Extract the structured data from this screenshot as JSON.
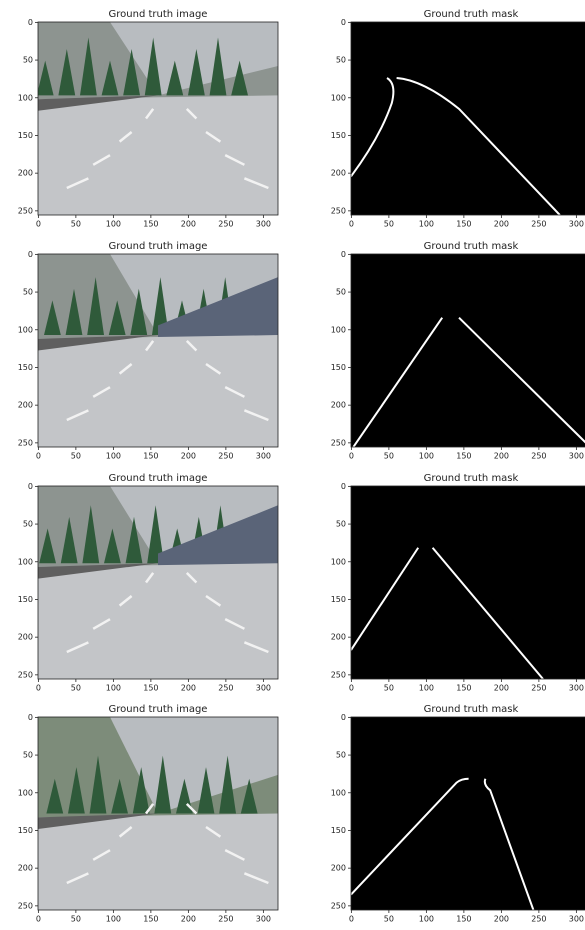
{
  "chart_data": [
    {
      "type": "image",
      "title": "Ground truth image",
      "xlim": [
        -0.5,
        319.5
      ],
      "ylim": [
        255.5,
        -0.5
      ],
      "xticks": [
        0,
        50,
        100,
        150,
        200,
        250,
        300
      ],
      "yticks": [
        0,
        50,
        100,
        150,
        200,
        250
      ]
    },
    {
      "type": "mask",
      "title": "Ground truth mask",
      "xlim": [
        -0.5,
        319.5
      ],
      "ylim": [
        255.5,
        -0.5
      ],
      "xticks": [
        0,
        50,
        100,
        150,
        200,
        250,
        300
      ],
      "yticks": [
        0,
        50,
        100,
        150,
        200,
        250
      ]
    },
    {
      "type": "image",
      "title": "Ground truth image",
      "xlim": [
        -0.5,
        319.5
      ],
      "ylim": [
        255.5,
        -0.5
      ],
      "xticks": [
        0,
        50,
        100,
        150,
        200,
        250,
        300
      ],
      "yticks": [
        0,
        50,
        100,
        150,
        200,
        250
      ]
    },
    {
      "type": "mask",
      "title": "Ground truth mask",
      "xlim": [
        -0.5,
        319.5
      ],
      "ylim": [
        255.5,
        -0.5
      ],
      "xticks": [
        0,
        50,
        100,
        150,
        200,
        250,
        300
      ],
      "yticks": [
        0,
        50,
        100,
        150,
        200,
        250
      ]
    },
    {
      "type": "image",
      "title": "Ground truth image",
      "xlim": [
        -0.5,
        319.5
      ],
      "ylim": [
        255.5,
        -0.5
      ],
      "xticks": [
        0,
        50,
        100,
        150,
        200,
        250,
        300
      ],
      "yticks": [
        0,
        50,
        100,
        150,
        200,
        250
      ]
    },
    {
      "type": "mask",
      "title": "Ground truth mask",
      "xlim": [
        -0.5,
        319.5
      ],
      "ylim": [
        255.5,
        -0.5
      ],
      "xticks": [
        0,
        50,
        100,
        150,
        200,
        250,
        300
      ],
      "yticks": [
        0,
        50,
        100,
        150,
        200,
        250
      ]
    },
    {
      "type": "image",
      "title": "Ground truth image",
      "xlim": [
        -0.5,
        319.5
      ],
      "ylim": [
        255.5,
        -0.5
      ],
      "xticks": [
        0,
        50,
        100,
        150,
        200,
        250,
        300
      ],
      "yticks": [
        0,
        50,
        100,
        150,
        200,
        250
      ]
    },
    {
      "type": "mask",
      "title": "Ground truth mask",
      "xlim": [
        -0.5,
        319.5
      ],
      "ylim": [
        255.5,
        -0.5
      ],
      "xticks": [
        0,
        50,
        100,
        150,
        200,
        250,
        300
      ],
      "yticks": [
        0,
        50,
        100,
        150,
        200,
        250
      ]
    }
  ]
}
